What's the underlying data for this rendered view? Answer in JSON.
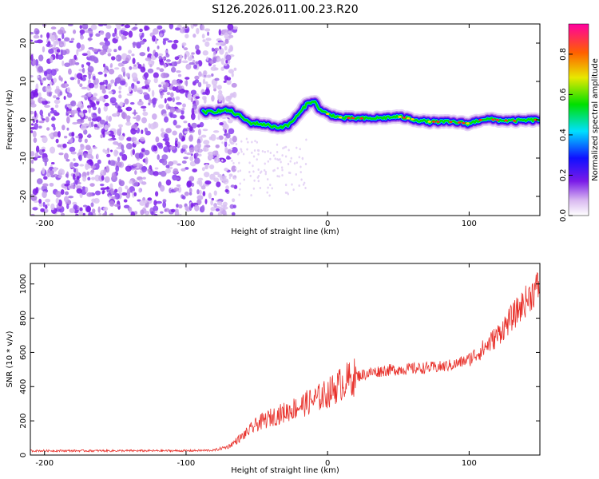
{
  "title": "S126.2026.011.00.23.R20",
  "chart_data": [
    {
      "type": "heatmap",
      "name": "spectrogram",
      "xlabel": "Height of straight line (km)",
      "ylabel": "Frequency (Hz)",
      "xlim": [
        -210,
        150
      ],
      "ylim": [
        -25,
        25
      ],
      "xticks": [
        -200,
        -100,
        0,
        100
      ],
      "yticks": [
        -20,
        -10,
        0,
        10,
        20
      ],
      "noise_region": [
        -210,
        -75
      ],
      "signal_center_hz": [
        [
          -85,
          2.0
        ],
        [
          -70,
          2.5
        ],
        [
          -62,
          1.0
        ],
        [
          -55,
          -0.8
        ],
        [
          -45,
          -1.2
        ],
        [
          -35,
          -2.0
        ],
        [
          -28,
          -1.5
        ],
        [
          -20,
          1.5
        ],
        [
          -15,
          4.0
        ],
        [
          -10,
          5.0
        ],
        [
          -5,
          2.5
        ],
        [
          0,
          1.5
        ],
        [
          10,
          0.5
        ],
        [
          30,
          0.3
        ],
        [
          50,
          0.8
        ],
        [
          70,
          -0.5
        ],
        [
          90,
          -0.6
        ],
        [
          100,
          -1.0
        ],
        [
          110,
          0.2
        ],
        [
          130,
          -0.3
        ],
        [
          150,
          0.0
        ]
      ],
      "colorbar": {
        "label": "Normalized spectral amplitude",
        "range": [
          0.0,
          0.95
        ],
        "ticks": [
          0.0,
          0.2,
          0.4,
          0.6,
          0.8
        ],
        "tick_labels": [
          "0.0",
          "0.2",
          "0.4",
          "0.6",
          "0.8"
        ]
      }
    },
    {
      "type": "line",
      "name": "snr",
      "xlabel": "Height of straight line (km)",
      "ylabel": "SNR (10 * v/v)",
      "xlim": [
        -210,
        150
      ],
      "ylim": [
        0,
        1120
      ],
      "xticks": [
        -200,
        -100,
        0,
        100
      ],
      "yticks": [
        0,
        200,
        400,
        600,
        800,
        1000
      ],
      "color": "#e8312b",
      "trend": [
        [
          -210,
          25
        ],
        [
          -100,
          25
        ],
        [
          -80,
          28
        ],
        [
          -70,
          50
        ],
        [
          -60,
          110
        ],
        [
          -50,
          180
        ],
        [
          -40,
          220
        ],
        [
          -30,
          250
        ],
        [
          -20,
          285
        ],
        [
          -10,
          320
        ],
        [
          0,
          360
        ],
        [
          10,
          420
        ],
        [
          20,
          460
        ],
        [
          30,
          480
        ],
        [
          40,
          495
        ],
        [
          60,
          505
        ],
        [
          80,
          515
        ],
        [
          90,
          530
        ],
        [
          100,
          560
        ],
        [
          110,
          620
        ],
        [
          120,
          700
        ],
        [
          130,
          800
        ],
        [
          140,
          900
        ],
        [
          150,
          1000
        ]
      ]
    }
  ]
}
